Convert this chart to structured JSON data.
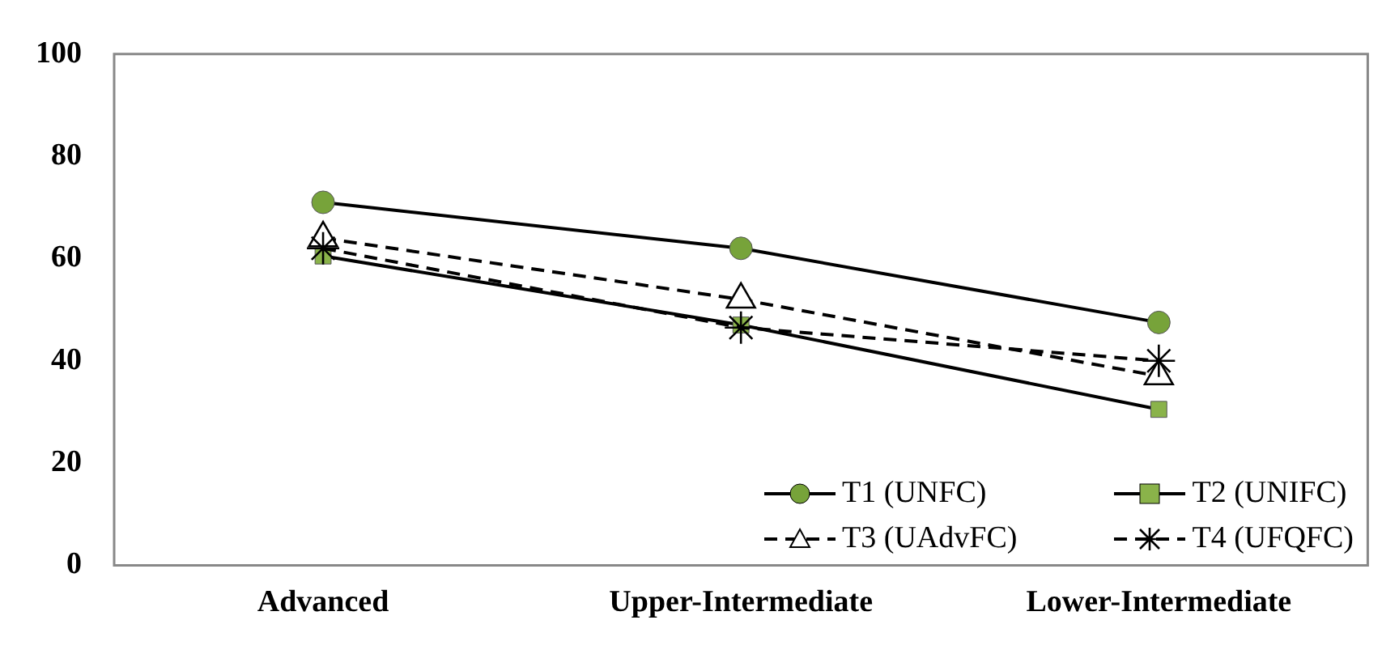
{
  "chart_data": {
    "type": "line",
    "categories": [
      "Advanced",
      "Upper-Intermediate",
      "Lower-Intermediate"
    ],
    "series": [
      {
        "name": "T1 (UNFC)",
        "color": "#77a33a",
        "values": [
          71,
          62,
          47.5
        ],
        "marker": "circle",
        "line_style": "solid"
      },
      {
        "name": "T2 (UNIFC)",
        "color": "#8ab34a",
        "values": [
          60.5,
          47,
          30.5
        ],
        "marker": "square",
        "line_style": "solid"
      },
      {
        "name": "T3 (UAdvFC)",
        "color": "#000000",
        "values": [
          64,
          52,
          37
        ],
        "marker": "triangle",
        "line_style": "dashed"
      },
      {
        "name": "T4 (UFQFC)",
        "color": "#000000",
        "values": [
          62,
          46.5,
          40
        ],
        "marker": "cross",
        "line_style": "dashed"
      }
    ],
    "ylim": [
      0,
      100
    ],
    "yticks": [
      0,
      20,
      40,
      60,
      80,
      100
    ],
    "grid": false,
    "legend": "bottom right"
  }
}
